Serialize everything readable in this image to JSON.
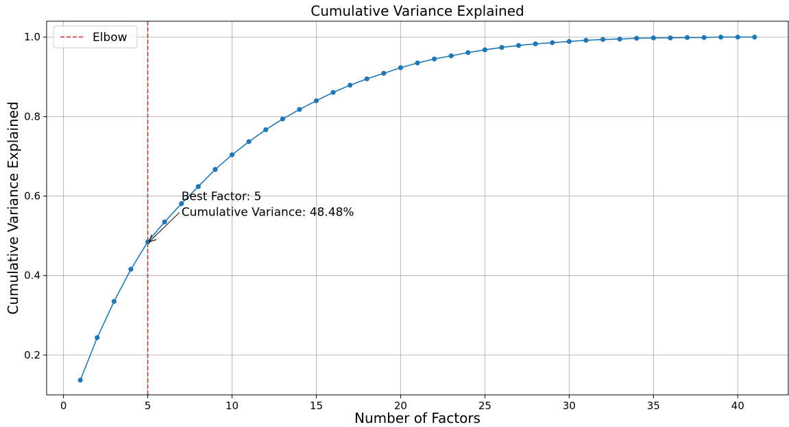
{
  "chart_data": {
    "type": "line",
    "title": "Cumulative Variance Explained",
    "xlabel": "Number of Factors",
    "ylabel": "Cumulative Variance Explained",
    "xlim": [
      -1.0,
      43.0
    ],
    "ylim": [
      0.1,
      1.04
    ],
    "xticks": [
      0,
      5,
      10,
      15,
      20,
      25,
      30,
      35,
      40
    ],
    "yticks": [
      0.2,
      0.4,
      0.6,
      0.8,
      1.0
    ],
    "ytick_labels": [
      "0.2",
      "0.4",
      "0.6",
      "0.8",
      "1.0"
    ],
    "grid": true,
    "legend": {
      "placement": "top-left",
      "entries": [
        {
          "label": "Elbow",
          "color": "#d62728",
          "style": "dashed"
        }
      ]
    },
    "series": [
      {
        "color": "#1f77b4",
        "marker": "circle",
        "x": [
          1,
          2,
          3,
          4,
          5,
          6,
          7,
          8,
          9,
          10,
          11,
          12,
          13,
          14,
          15,
          16,
          17,
          18,
          19,
          20,
          21,
          22,
          23,
          24,
          25,
          26,
          27,
          28,
          29,
          30,
          31,
          32,
          33,
          34,
          35,
          36,
          37,
          38,
          39,
          40,
          41
        ],
        "y": [
          0.137,
          0.244,
          0.335,
          0.416,
          0.4848,
          0.535,
          0.581,
          0.624,
          0.667,
          0.704,
          0.737,
          0.767,
          0.794,
          0.818,
          0.84,
          0.861,
          0.879,
          0.895,
          0.909,
          0.923,
          0.935,
          0.945,
          0.953,
          0.961,
          0.968,
          0.974,
          0.979,
          0.983,
          0.986,
          0.989,
          0.992,
          0.994,
          0.995,
          0.997,
          0.998,
          0.998,
          0.999,
          0.999,
          1.0,
          1.0,
          1.0
        ]
      }
    ],
    "vline": {
      "x": 5,
      "color": "#d62728",
      "style": "dashed"
    },
    "annotation": {
      "lines": [
        "Best Factor: 5",
        "Cumulative Variance: 48.48%"
      ],
      "point": [
        5,
        0.4848
      ],
      "text_at": [
        7,
        0.6
      ]
    }
  }
}
